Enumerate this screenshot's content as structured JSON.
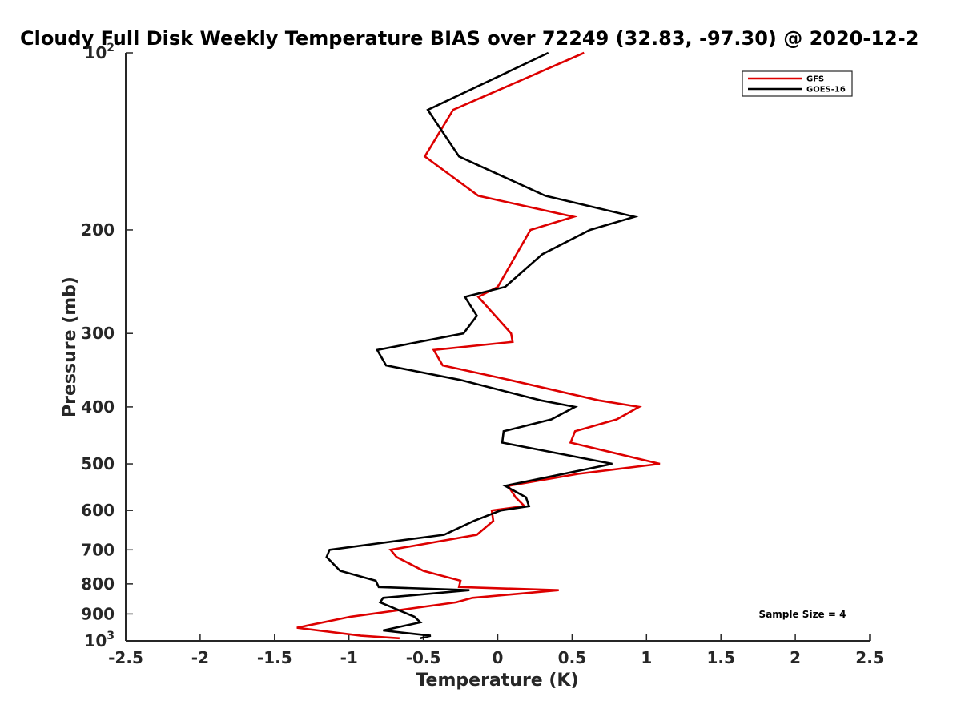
{
  "chart_data": {
    "type": "line",
    "title": "Cloudy Full Disk Weekly Temperature BIAS over 72249 (32.83, -97.30) @ 2020-12-2",
    "xlabel": "Temperature (K)",
    "ylabel": "Pressure (mb)",
    "xlim": [
      -2.5,
      2.5
    ],
    "ylim": [
      1000,
      100
    ],
    "yscale": "log",
    "y_reversed": true,
    "x_ticks": [
      "-2.5",
      "-2",
      "-1.5",
      "-1",
      "-0.5",
      "0",
      "0.5",
      "1",
      "1.5",
      "2",
      "2.5"
    ],
    "y_ticks": [
      {
        "label": "10",
        "exp": "2",
        "value": 100
      },
      {
        "label": "200",
        "exp": "",
        "value": 200
      },
      {
        "label": "300",
        "exp": "",
        "value": 300
      },
      {
        "label": "400",
        "exp": "",
        "value": 400
      },
      {
        "label": "500",
        "exp": "",
        "value": 500
      },
      {
        "label": "600",
        "exp": "",
        "value": 600
      },
      {
        "label": "700",
        "exp": "",
        "value": 700
      },
      {
        "label": "800",
        "exp": "",
        "value": 800
      },
      {
        "label": "900",
        "exp": "",
        "value": 900
      },
      {
        "label": "10",
        "exp": "3",
        "value": 1000
      }
    ],
    "grid": false,
    "legend_position": "top-right",
    "annotation": "Sample Size = 4",
    "series": [
      {
        "name": "GFS",
        "color": "#dd0000",
        "points": [
          [
            0.58,
            100
          ],
          [
            -0.3,
            125
          ],
          [
            -0.49,
            150
          ],
          [
            -0.13,
            175
          ],
          [
            0.51,
            190
          ],
          [
            0.22,
            200
          ],
          [
            0.0,
            250
          ],
          [
            -0.13,
            260
          ],
          [
            0.09,
            300
          ],
          [
            0.1,
            310
          ],
          [
            -0.43,
            320
          ],
          [
            -0.37,
            340
          ],
          [
            0.08,
            360
          ],
          [
            0.68,
            390
          ],
          [
            0.95,
            400
          ],
          [
            0.8,
            420
          ],
          [
            0.52,
            440
          ],
          [
            0.49,
            460
          ],
          [
            1.09,
            500
          ],
          [
            0.54,
            520
          ],
          [
            0.07,
            545
          ],
          [
            0.12,
            570
          ],
          [
            0.18,
            590
          ],
          [
            -0.04,
            600
          ],
          [
            -0.03,
            625
          ],
          [
            -0.14,
            660
          ],
          [
            -0.72,
            700
          ],
          [
            -0.68,
            720
          ],
          [
            -0.5,
            760
          ],
          [
            -0.25,
            790
          ],
          [
            -0.26,
            810
          ],
          [
            0.41,
            820
          ],
          [
            -0.17,
            845
          ],
          [
            -0.28,
            860
          ],
          [
            -0.99,
            910
          ],
          [
            -1.35,
            950
          ],
          [
            -0.92,
            980
          ],
          [
            -0.66,
            990
          ]
        ]
      },
      {
        "name": "GOES-16",
        "color": "#000000",
        "points": [
          [
            0.34,
            100
          ],
          [
            -0.47,
            125
          ],
          [
            -0.26,
            150
          ],
          [
            0.32,
            175
          ],
          [
            0.92,
            190
          ],
          [
            0.62,
            200
          ],
          [
            0.3,
            220
          ],
          [
            0.05,
            250
          ],
          [
            -0.22,
            260
          ],
          [
            -0.14,
            280
          ],
          [
            -0.23,
            300
          ],
          [
            -0.81,
            320
          ],
          [
            -0.75,
            340
          ],
          [
            -0.25,
            360
          ],
          [
            0.29,
            390
          ],
          [
            0.52,
            400
          ],
          [
            0.36,
            420
          ],
          [
            0.04,
            440
          ],
          [
            0.03,
            460
          ],
          [
            0.77,
            500
          ],
          [
            0.05,
            545
          ],
          [
            0.19,
            570
          ],
          [
            0.21,
            590
          ],
          [
            0.02,
            600
          ],
          [
            -0.16,
            625
          ],
          [
            -0.36,
            660
          ],
          [
            -1.13,
            700
          ],
          [
            -1.15,
            720
          ],
          [
            -1.06,
            760
          ],
          [
            -0.82,
            790
          ],
          [
            -0.8,
            810
          ],
          [
            -0.19,
            820
          ],
          [
            -0.77,
            845
          ],
          [
            -0.79,
            860
          ],
          [
            -0.56,
            910
          ],
          [
            -0.52,
            930
          ],
          [
            -0.77,
            960
          ],
          [
            -0.45,
            980
          ],
          [
            -0.52,
            990
          ]
        ]
      }
    ]
  }
}
